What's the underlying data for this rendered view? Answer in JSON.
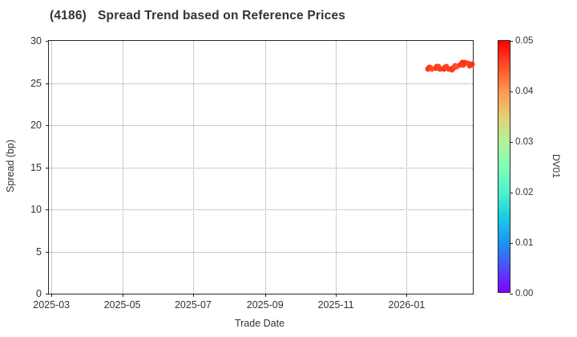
{
  "title": {
    "code": "(4186)",
    "text": "Spread Trend based on Reference Prices"
  },
  "chart_data": {
    "type": "scatter",
    "title": "(4186) Spread Trend based on Reference Prices",
    "xlabel": "Trade Date",
    "ylabel": "Spread (bp)",
    "grid": true,
    "ylim": [
      0,
      30
    ],
    "x_range": [
      "2025-02-26",
      "2026-02-27"
    ],
    "y_ticks": [
      0,
      5,
      10,
      15,
      20,
      25,
      30
    ],
    "x_ticks": [
      {
        "label": "2025-03",
        "date": "2025-03-01"
      },
      {
        "label": "2025-05",
        "date": "2025-05-01"
      },
      {
        "label": "2025-07",
        "date": "2025-07-01"
      },
      {
        "label": "2025-09",
        "date": "2025-09-01"
      },
      {
        "label": "2025-11",
        "date": "2025-11-01"
      },
      {
        "label": "2026-01",
        "date": "2026-01-01"
      }
    ],
    "colorbar": {
      "label": "DV01",
      "min": 0.0,
      "max": 0.05,
      "tick_labels": [
        "0.00",
        "0.01",
        "0.02",
        "0.03",
        "0.04",
        "0.05"
      ],
      "colormap": "rainbow",
      "gradient_bottom_to_top": [
        "#8000ff",
        "#4d4ffc",
        "#1a96f3",
        "#1acee3",
        "#4df3ce",
        "#80ffb4",
        "#b3f396",
        "#e6ce74",
        "#ff964f",
        "#ff4f28",
        "#ff0000"
      ]
    },
    "points": [
      {
        "date": "2026-01-19",
        "spread": 26.65,
        "dv01": 0.046
      },
      {
        "date": "2026-01-20",
        "spread": 26.8,
        "dv01": 0.046
      },
      {
        "date": "2026-01-21",
        "spread": 26.9,
        "dv01": 0.047
      },
      {
        "date": "2026-01-22",
        "spread": 26.75,
        "dv01": 0.046
      },
      {
        "date": "2026-01-23",
        "spread": 26.62,
        "dv01": 0.045
      },
      {
        "date": "2026-01-26",
        "spread": 26.72,
        "dv01": 0.046
      },
      {
        "date": "2026-01-27",
        "spread": 26.95,
        "dv01": 0.047
      },
      {
        "date": "2026-01-28",
        "spread": 27.0,
        "dv01": 0.046
      },
      {
        "date": "2026-01-29",
        "spread": 26.8,
        "dv01": 0.045
      },
      {
        "date": "2026-01-30",
        "spread": 26.68,
        "dv01": 0.046
      },
      {
        "date": "2026-02-02",
        "spread": 26.62,
        "dv01": 0.047
      },
      {
        "date": "2026-02-03",
        "spread": 26.85,
        "dv01": 0.046
      },
      {
        "date": "2026-02-04",
        "spread": 26.98,
        "dv01": 0.046
      },
      {
        "date": "2026-02-05",
        "spread": 26.8,
        "dv01": 0.045
      },
      {
        "date": "2026-02-06",
        "spread": 26.65,
        "dv01": 0.046
      },
      {
        "date": "2026-02-09",
        "spread": 26.6,
        "dv01": 0.046
      },
      {
        "date": "2026-02-10",
        "spread": 26.78,
        "dv01": 0.047
      },
      {
        "date": "2026-02-11",
        "spread": 26.9,
        "dv01": 0.046
      },
      {
        "date": "2026-02-12",
        "spread": 27.05,
        "dv01": 0.046
      },
      {
        "date": "2026-02-13",
        "spread": 26.95,
        "dv01": 0.045
      },
      {
        "date": "2026-02-16",
        "spread": 27.1,
        "dv01": 0.046
      },
      {
        "date": "2026-02-17",
        "spread": 27.28,
        "dv01": 0.047
      },
      {
        "date": "2026-02-18",
        "spread": 27.4,
        "dv01": 0.047
      },
      {
        "date": "2026-02-19",
        "spread": 27.15,
        "dv01": 0.046
      },
      {
        "date": "2026-02-20",
        "spread": 27.45,
        "dv01": 0.047
      },
      {
        "date": "2026-02-23",
        "spread": 27.35,
        "dv01": 0.046
      },
      {
        "date": "2026-02-24",
        "spread": 27.05,
        "dv01": 0.046
      },
      {
        "date": "2026-02-25",
        "spread": 27.15,
        "dv01": 0.046
      },
      {
        "date": "2026-02-26",
        "spread": 27.2,
        "dv01": 0.047
      }
    ]
  }
}
